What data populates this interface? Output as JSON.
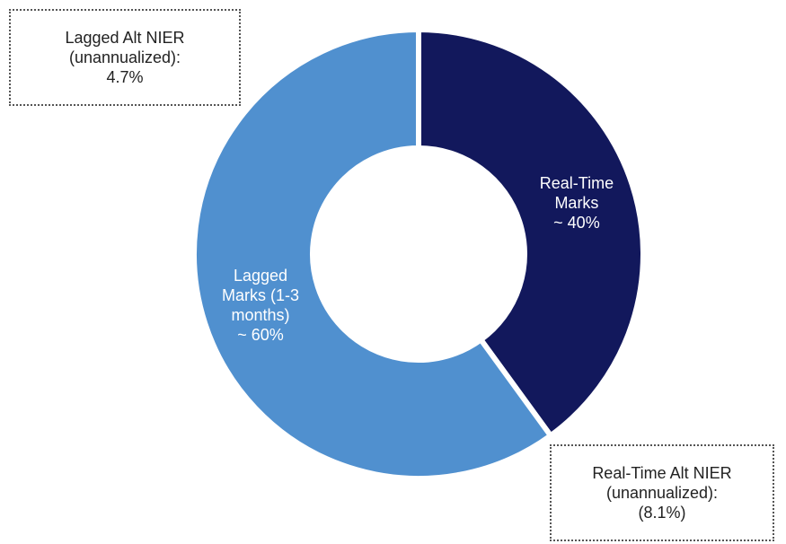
{
  "chart_data": {
    "type": "pie",
    "donut": true,
    "categories": [
      "Real-Time Marks",
      "Lagged Marks (1-3 months)"
    ],
    "values": [
      40,
      60
    ],
    "value_labels": [
      "~ 40%",
      "~ 60%"
    ],
    "colors": [
      "#12185c",
      "#5090cf"
    ],
    "annotations": [
      "Lagged Alt NIER (unannualized): 4.7%",
      "Real-Time Alt NIER (unannualized): (8.1%)"
    ]
  }
}
